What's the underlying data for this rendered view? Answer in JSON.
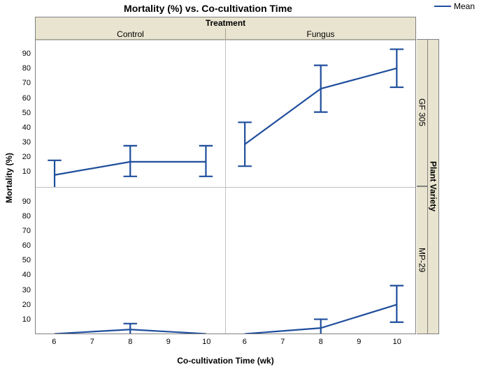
{
  "title": "Mortality (%) vs. Co-cultivation Time",
  "legend_label": "Mean",
  "top_strip_label": "Treatment",
  "col_labels": [
    "Control",
    "Fungus"
  ],
  "right_outer_label": "Plant Variety",
  "row_labels": [
    "GF 305",
    "MP-29"
  ],
  "ylabel": "Mortality (%)",
  "xlabel": "Co-cultivation Time (wk)",
  "line_color": "#1f4e9c",
  "strip_bg": "#e8e4cf",
  "grid_color": "#c0c0c0",
  "frame_color": "#808080",
  "background": "#ffffff",
  "x": {
    "min": 5.5,
    "max": 10.5,
    "ticks": [
      6,
      7,
      8,
      9,
      10
    ]
  },
  "y": {
    "min": 0,
    "max": 100,
    "ticks": [
      10,
      20,
      30,
      40,
      50,
      60,
      70,
      80,
      90
    ]
  },
  "line_width": 2.2,
  "cap_halfwidth_wk": 0.18,
  "panels": [
    {
      "row": "GF 305",
      "col": "Control",
      "points": [
        {
          "x": 6,
          "y": 8,
          "lo": -2,
          "hi": 18
        },
        {
          "x": 8,
          "y": 17,
          "lo": 7,
          "hi": 28
        },
        {
          "x": 10,
          "y": 17,
          "lo": 7,
          "hi": 28
        }
      ]
    },
    {
      "row": "GF 305",
      "col": "Fungus",
      "points": [
        {
          "x": 6,
          "y": 29,
          "lo": 14,
          "hi": 44
        },
        {
          "x": 8,
          "y": 67,
          "lo": 51,
          "hi": 83
        },
        {
          "x": 10,
          "y": 81,
          "lo": 68,
          "hi": 94
        }
      ]
    },
    {
      "row": "MP-29",
      "col": "Control",
      "points": [
        {
          "x": 6,
          "y": 0,
          "lo": 0,
          "hi": 0
        },
        {
          "x": 8,
          "y": 3,
          "lo": -2,
          "hi": 7
        },
        {
          "x": 10,
          "y": 0,
          "lo": 0,
          "hi": 0
        }
      ]
    },
    {
      "row": "MP-29",
      "col": "Fungus",
      "points": [
        {
          "x": 6,
          "y": 0,
          "lo": 0,
          "hi": 0
        },
        {
          "x": 8,
          "y": 4,
          "lo": -2,
          "hi": 10
        },
        {
          "x": 10,
          "y": 20,
          "lo": 8,
          "hi": 33
        }
      ]
    }
  ]
}
